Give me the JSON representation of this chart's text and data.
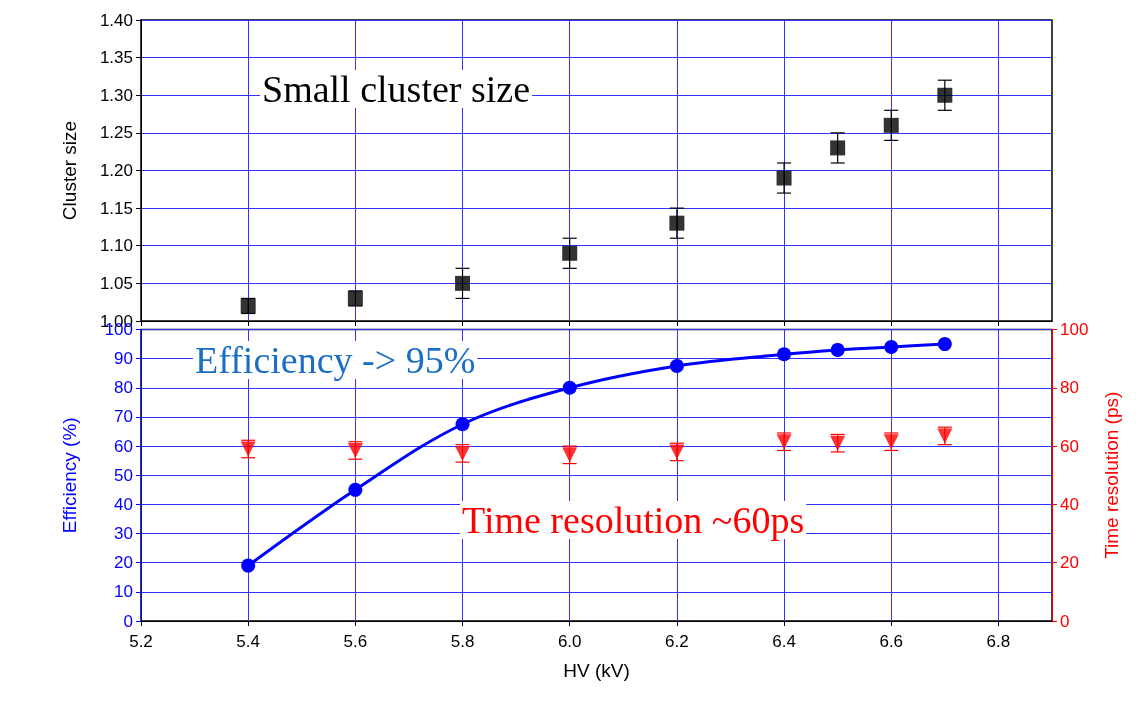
{
  "chart_data": [
    {
      "type": "scatter",
      "ylabel": "Cluster size",
      "annotations": [
        "Small cluster size"
      ],
      "x": [
        5.4,
        5.6,
        5.8,
        6.0,
        6.2,
        6.4,
        6.5,
        6.6,
        6.7
      ],
      "series": [
        {
          "color": "#000000",
          "values": [
            1.02,
            1.03,
            1.05,
            1.09,
            1.13,
            1.19,
            1.23,
            1.26,
            1.3
          ],
          "errors": [
            0.01,
            0.01,
            0.02,
            0.02,
            0.02,
            0.02,
            0.02,
            0.02,
            0.02
          ]
        }
      ],
      "marker": "square",
      "xlim": [
        5.2,
        6.9
      ],
      "xticks": [
        5.2,
        5.4,
        5.6,
        5.8,
        6,
        6.2,
        6.4,
        6.6,
        6.8
      ],
      "ylim": [
        1.0,
        1.4
      ],
      "yticks": [
        {
          "value": 1,
          "label": "1.00"
        },
        1.05,
        {
          "value": 1.1,
          "label": "1.10"
        },
        1.15,
        {
          "value": 1.2,
          "label": "1.20"
        },
        1.25,
        {
          "value": 1.3,
          "label": "1.30"
        },
        1.35,
        {
          "value": 1.4,
          "label": "1.40"
        }
      ],
      "grid": true,
      "tick_labels": "y"
    },
    {
      "type": "line",
      "xlabel": "HV (kV)",
      "ylabel": "Efficiency (%)",
      "y2label": "Time resolution (ps)",
      "annotations": [
        "Efficiency -> 95%",
        "Time resolution ~60ps"
      ],
      "x": [
        5.4,
        5.6,
        5.8,
        6.0,
        6.2,
        6.4,
        6.5,
        6.6,
        6.7
      ],
      "series": [
        {
          "color": "#0000ff",
          "marker": "circle",
          "values": [
            19,
            45,
            67.5,
            80,
            87.5,
            91.5,
            93,
            94,
            95
          ]
        },
        {
          "type": "scatter",
          "axis": "y2",
          "color": "#ff0000",
          "marker": "triangle",
          "values": [
            59,
            58.5,
            57.5,
            57,
            58,
            61.5,
            61,
            61.5,
            63.5
          ],
          "errors": [
            3,
            3,
            3,
            3,
            3,
            3,
            3,
            3,
            3
          ]
        }
      ],
      "xlim": [
        5.2,
        6.9
      ],
      "xticks": [
        5.2,
        5.4,
        5.6,
        5.8,
        {
          "value": 6,
          "label": "6.0"
        },
        6.2,
        6.4,
        6.6,
        6.8
      ],
      "ylim": [
        0,
        100
      ],
      "yticks": [
        0,
        10,
        20,
        30,
        40,
        50,
        60,
        70,
        80,
        90,
        100
      ],
      "y2lim": [
        0,
        100
      ],
      "y2ticks": [
        0,
        20,
        40,
        60,
        80,
        100
      ],
      "grid": true
    }
  ]
}
